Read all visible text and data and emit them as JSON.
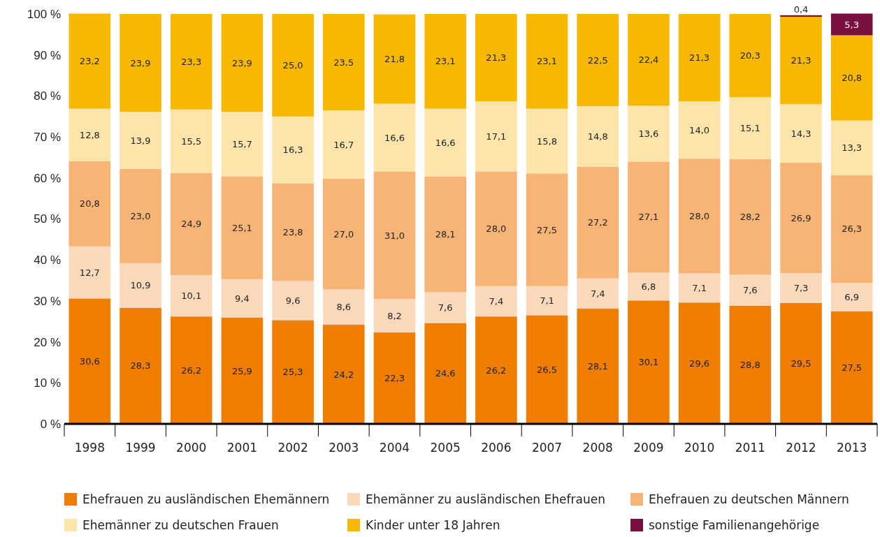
{
  "chart_data": {
    "type": "bar",
    "stacked": true,
    "categories": [
      "1998",
      "1999",
      "2000",
      "2001",
      "2002",
      "2003",
      "2004",
      "2005",
      "2006",
      "2007",
      "2008",
      "2009",
      "2010",
      "2011",
      "2012",
      "2013"
    ],
    "ylim": [
      0,
      100
    ],
    "yticks": [
      {
        "value": 0,
        "label": "0 %"
      },
      {
        "value": 10,
        "label": "10 %"
      },
      {
        "value": 20,
        "label": "20 %"
      },
      {
        "value": 30,
        "label": "30 %"
      },
      {
        "value": 40,
        "label": "40 %"
      },
      {
        "value": 50,
        "label": "50 %"
      },
      {
        "value": 60,
        "label": "60 %"
      },
      {
        "value": 70,
        "label": "70 %"
      },
      {
        "value": 80,
        "label": "80 %"
      },
      {
        "value": 90,
        "label": "90 %"
      },
      {
        "value": 100,
        "label": "100 %"
      }
    ],
    "grid": false,
    "legend": "bottom",
    "series": [
      {
        "name": "Ehefrauen zu ausländischen Ehemännern",
        "color": "#ee7d00",
        "values": [
          30.6,
          28.3,
          26.2,
          25.9,
          25.3,
          24.2,
          22.3,
          24.6,
          26.2,
          26.5,
          28.1,
          30.1,
          29.6,
          28.8,
          29.5,
          27.5
        ],
        "value_labels": [
          "30,6",
          "28,3",
          "26,2",
          "25,9",
          "25,3",
          "24,2",
          "22,3",
          "24,6",
          "26,2",
          "26,5",
          "28,1",
          "30,1",
          "29,6",
          "28,8",
          "29,5",
          "27,5"
        ]
      },
      {
        "name": "Ehemänner zu ausländischen Ehefrauen",
        "color": "#fcd9bb",
        "values": [
          12.7,
          10.9,
          10.1,
          9.4,
          9.6,
          8.6,
          8.2,
          7.6,
          7.4,
          7.1,
          7.4,
          6.8,
          7.1,
          7.6,
          7.3,
          6.9
        ],
        "value_labels": [
          "12,7",
          "10,9",
          "10,1",
          "9,4",
          "9,6",
          "8,6",
          "8,2",
          "7,6",
          "7,4",
          "7,1",
          "7,4",
          "6,8",
          "7,1",
          "7,6",
          "7,3",
          "6,9"
        ]
      },
      {
        "name": "Ehefrauen zu deutschen Männern",
        "color": "#f7b474",
        "values": [
          20.8,
          23.0,
          24.9,
          25.1,
          23.8,
          27.0,
          31.0,
          28.1,
          28.0,
          27.5,
          27.2,
          27.1,
          28.0,
          28.2,
          26.9,
          26.3
        ],
        "value_labels": [
          "20,8",
          "23,0",
          "24,9",
          "25,1",
          "23,8",
          "27,0",
          "31,0",
          "28,1",
          "28,0",
          "27,5",
          "27,2",
          "27,1",
          "28,0",
          "28,2",
          "26,9",
          "26,3"
        ]
      },
      {
        "name": "Ehemänner zu deutschen Frauen",
        "color": "#fde4ab",
        "values": [
          12.8,
          13.9,
          15.5,
          15.7,
          16.3,
          16.7,
          16.6,
          16.6,
          17.1,
          15.8,
          14.8,
          13.6,
          14.0,
          15.1,
          14.3,
          13.3
        ],
        "value_labels": [
          "12,8",
          "13,9",
          "15,5",
          "15,7",
          "16,3",
          "16,7",
          "16,6",
          "16,6",
          "17,1",
          "15,8",
          "14,8",
          "13,6",
          "14,0",
          "15,1",
          "14,3",
          "13,3"
        ]
      },
      {
        "name": "Kinder unter 18 Jahren",
        "color": "#f9b800",
        "values": [
          23.2,
          23.9,
          23.3,
          23.9,
          25.0,
          23.5,
          21.8,
          23.1,
          21.3,
          23.1,
          22.5,
          22.4,
          21.3,
          20.3,
          21.3,
          20.8
        ],
        "value_labels": [
          "23,2",
          "23,9",
          "23,3",
          "23,9",
          "25,0",
          "23,5",
          "21,8",
          "23,1",
          "21,3",
          "23,1",
          "22,5",
          "22,4",
          "21,3",
          "20,3",
          "21,3",
          "20,8"
        ]
      },
      {
        "name": "sonstige Familienangehörige",
        "color": "#7a1040",
        "values": [
          null,
          null,
          null,
          null,
          null,
          null,
          null,
          null,
          null,
          null,
          null,
          null,
          null,
          null,
          0.4,
          5.3
        ],
        "value_labels": [
          null,
          null,
          null,
          null,
          null,
          null,
          null,
          null,
          null,
          null,
          null,
          null,
          null,
          null,
          "0,4",
          "5,3"
        ]
      }
    ]
  }
}
